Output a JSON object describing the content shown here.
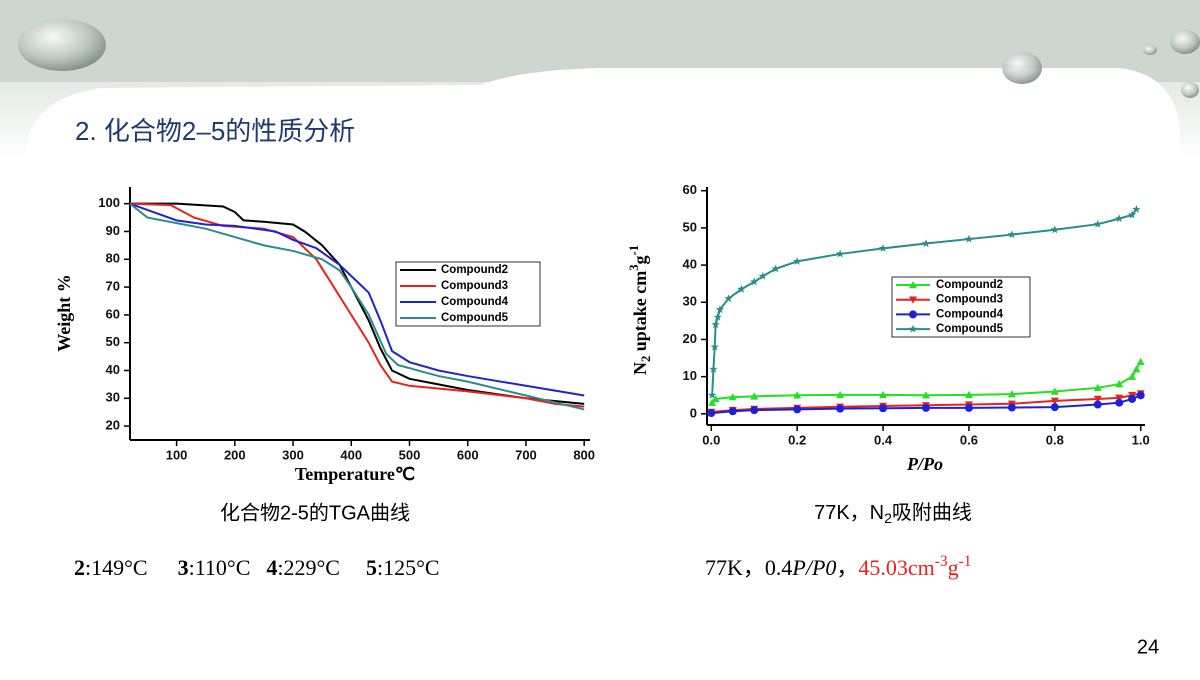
{
  "title": "2. 化合物2–5的性质分析",
  "page_number": "24",
  "captions": {
    "tga": "化合物2-5的TGA曲线",
    "adsorption": [
      "77K，N",
      "2",
      "吸附曲线"
    ]
  },
  "tga_onsets": [
    {
      "compound": "2",
      "temp": ":149°C"
    },
    {
      "compound": "3",
      "temp": ":110°C"
    },
    {
      "compound": "4",
      "temp": ":229°C"
    },
    {
      "compound": "5",
      "temp": ":125°C"
    }
  ],
  "adsorption_note": [
    "77K，0.4",
    "P/P0",
    "，",
    "45.03cm",
    "-3",
    "g",
    "-1"
  ],
  "chart_data": [
    {
      "type": "line",
      "y_label": "Weight %",
      "x_label": "Temperature℃",
      "xlim": [
        20,
        810
      ],
      "xticks": [
        100,
        200,
        300,
        400,
        500,
        600,
        700,
        800
      ],
      "ylim": [
        15,
        106
      ],
      "yticks": [
        20,
        30,
        40,
        50,
        60,
        70,
        80,
        90,
        100
      ],
      "legend": "center right",
      "series": [
        {
          "name": "Compound2",
          "color": "#000000",
          "x": [
            20,
            100,
            180,
            200,
            215,
            250,
            300,
            320,
            350,
            380,
            400,
            430,
            450,
            470,
            500,
            600,
            700,
            800
          ],
          "values": [
            100,
            100,
            99,
            97,
            94,
            93.5,
            92.5,
            90,
            85,
            78,
            70,
            58,
            48,
            40,
            37,
            33,
            30,
            28
          ]
        },
        {
          "name": "Compound3",
          "color": "#e8231f",
          "x": [
            20,
            90,
            130,
            180,
            250,
            300,
            340,
            370,
            400,
            430,
            450,
            470,
            500,
            600,
            700,
            750,
            800
          ],
          "values": [
            100,
            99.5,
            95,
            92,
            91,
            88,
            80,
            70,
            60,
            50,
            42,
            36,
            34.5,
            32.5,
            30,
            28,
            27
          ]
        },
        {
          "name": "Compound4",
          "color": "#1e22d6",
          "x": [
            20,
            60,
            100,
            150,
            200,
            270,
            300,
            340,
            380,
            400,
            430,
            450,
            470,
            500,
            550,
            600,
            700,
            800
          ],
          "values": [
            100,
            97,
            94,
            92.5,
            92,
            90,
            87,
            84,
            78,
            74,
            68,
            58,
            47,
            43,
            40,
            38,
            34.5,
            31
          ]
        },
        {
          "name": "Compound5",
          "color": "#2a8c8c",
          "x": [
            20,
            50,
            100,
            150,
            200,
            250,
            300,
            350,
            380,
            400,
            430,
            460,
            480,
            550,
            600,
            700,
            800
          ],
          "values": [
            100,
            95,
            93,
            91,
            88,
            85,
            83,
            80,
            76,
            70,
            60,
            46,
            42,
            38,
            36,
            31,
            26
          ]
        }
      ]
    },
    {
      "type": "line",
      "y_label": [
        "N",
        "2",
        " uptake cm",
        "3",
        "g",
        "-1"
      ],
      "x_label": "P/Po",
      "xlim": [
        -0.01,
        1.01
      ],
      "xticks": [
        {
          "value": 0,
          "label": "0.0"
        },
        0.2,
        0.4,
        0.6,
        0.8,
        {
          "value": 1,
          "label": "1.0"
        }
      ],
      "ylim": [
        -3,
        61
      ],
      "yticks": [
        0,
        10,
        20,
        30,
        40,
        50,
        60
      ],
      "legend": "center right",
      "series": [
        {
          "name": "Compound2",
          "color": "#22e022",
          "marker": "triangle-up",
          "x": [
            0.002,
            0.01,
            0.05,
            0.1,
            0.2,
            0.3,
            0.4,
            0.5,
            0.6,
            0.7,
            0.8,
            0.9,
            0.95,
            0.98,
            0.99,
            1.0
          ],
          "values": [
            3,
            4,
            4.5,
            4.7,
            5,
            5.1,
            5.1,
            5.0,
            5.1,
            5.3,
            6,
            7,
            8,
            10,
            12,
            14
          ]
        },
        {
          "name": "Compound3",
          "color": "#e8231f",
          "marker": "triangle-down",
          "x": [
            0,
            0.05,
            0.1,
            0.2,
            0.3,
            0.4,
            0.5,
            0.6,
            0.7,
            0.8,
            0.9,
            0.95,
            0.98,
            1.0
          ],
          "values": [
            0.5,
            1,
            1.3,
            1.6,
            1.9,
            2.1,
            2.3,
            2.5,
            2.7,
            3.5,
            4,
            4.3,
            5,
            5.5
          ]
        },
        {
          "name": "Compound4",
          "color": "#1e22d6",
          "marker": "circle",
          "x": [
            0,
            0.05,
            0.1,
            0.2,
            0.3,
            0.4,
            0.5,
            0.6,
            0.7,
            0.8,
            0.9,
            0.95,
            0.98,
            1.0
          ],
          "values": [
            0.2,
            0.7,
            1,
            1.2,
            1.4,
            1.5,
            1.6,
            1.6,
            1.7,
            1.8,
            2.5,
            3,
            4,
            5
          ]
        },
        {
          "name": "Compound5",
          "color": "#2a8c8c",
          "marker": "star",
          "x": [
            0.002,
            0.005,
            0.008,
            0.01,
            0.015,
            0.02,
            0.04,
            0.07,
            0.1,
            0.12,
            0.15,
            0.2,
            0.3,
            0.4,
            0.5,
            0.6,
            0.7,
            0.8,
            0.9,
            0.95,
            0.98,
            0.99
          ],
          "values": [
            5,
            12,
            18,
            24,
            26,
            28,
            31,
            33.5,
            35.5,
            37,
            39,
            41,
            43,
            44.5,
            45.8,
            47,
            48.2,
            49.5,
            51,
            52.5,
            53.5,
            55
          ]
        }
      ]
    }
  ]
}
